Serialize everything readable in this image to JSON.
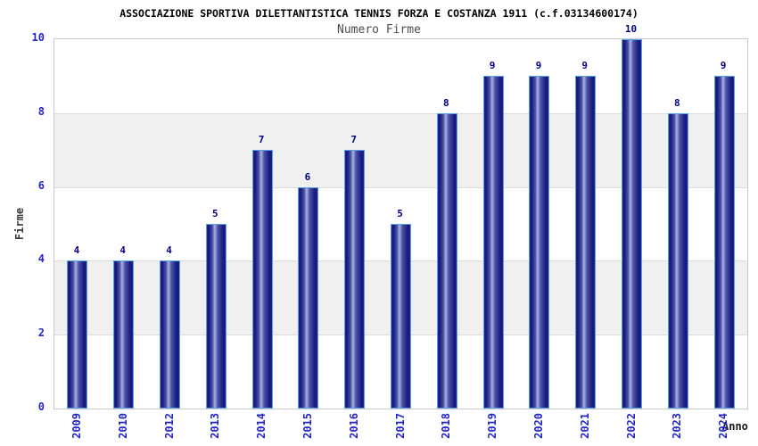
{
  "title": "ASSOCIAZIONE SPORTIVA DILETTANTISTICA TENNIS FORZA E COSTANZA 1911 (c.f.03134600174)",
  "subtitle": "Numero Firme",
  "chart_data": {
    "type": "bar",
    "title": "Numero Firme",
    "categories": [
      "2009",
      "2010",
      "2012",
      "2013",
      "2014",
      "2015",
      "2016",
      "2017",
      "2018",
      "2019",
      "2020",
      "2021",
      "2022",
      "2023",
      "2024"
    ],
    "values": [
      4,
      4,
      4,
      5,
      7,
      6,
      7,
      5,
      8,
      9,
      9,
      9,
      10,
      8,
      9
    ],
    "xlabel": "Anno",
    "ylabel": "Firme",
    "ylim": [
      0,
      10
    ],
    "yticks": [
      0,
      2,
      4,
      6,
      8,
      10
    ],
    "grid": "alternating horizontal bands with lines at even values",
    "legend": false,
    "colors": {
      "bar_dark": "#17177a",
      "bar_highlight": "#aab4e0",
      "bar_border": "#55a0e8",
      "tick_label": "#2323cc",
      "value_label": "#000085",
      "band_gray": "#f0f0f0",
      "gridline": "#dcdcdc",
      "plot_border": "#c9c9c9",
      "subtitle_text": "#4d4d4d"
    }
  }
}
